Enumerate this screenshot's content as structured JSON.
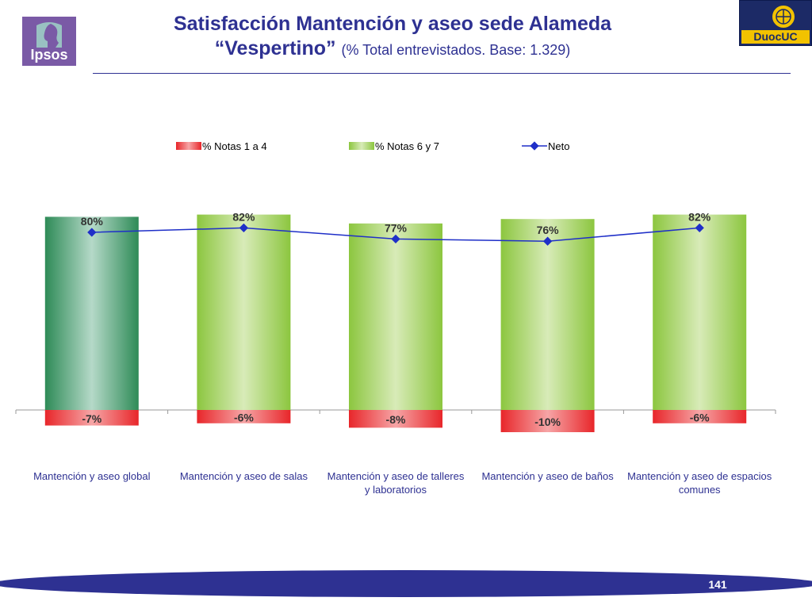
{
  "header": {
    "title_line1": "Satisfacción Mantención y aseo sede Alameda",
    "title_line2_bold": "“Vespertino”",
    "title_line2_note": "(% Total entrevistados. Base: 1.329)"
  },
  "logos": {
    "left_text": "Ipsos",
    "right_text": "DuocUC"
  },
  "footer": {
    "page_number": "141"
  },
  "colors": {
    "title": "#2e3192",
    "negative_bar": "#e8262a",
    "positive_bar": "#8cc63f",
    "positive_bar_first": "#2e8b57",
    "net_line": "#1f2fc8",
    "footer": "#2e3192"
  },
  "chart_data": {
    "type": "bar",
    "categories": [
      "Mantención y aseo global",
      "Mantención y aseo de salas",
      "Mantención y aseo de talleres y laboratorios",
      "Mantención y aseo de baños",
      "Mantención y aseo de espacios comunes"
    ],
    "series": [
      {
        "name": "% Notas 1 a 4",
        "values": [
          -7,
          -6,
          -8,
          -10,
          -6
        ],
        "labels": [
          "-7%",
          "-6%",
          "-8%",
          "-10%",
          "-6%"
        ]
      },
      {
        "name": "% Notas 6 y 7",
        "values": [
          87,
          88,
          84,
          86,
          88
        ]
      },
      {
        "name": "Neto",
        "type": "line",
        "values": [
          80,
          82,
          77,
          76,
          82
        ],
        "labels": [
          "80%",
          "82%",
          "77%",
          "76%",
          "82%"
        ]
      }
    ],
    "legend_position": "top",
    "ylim": [
      -12,
      95
    ]
  }
}
